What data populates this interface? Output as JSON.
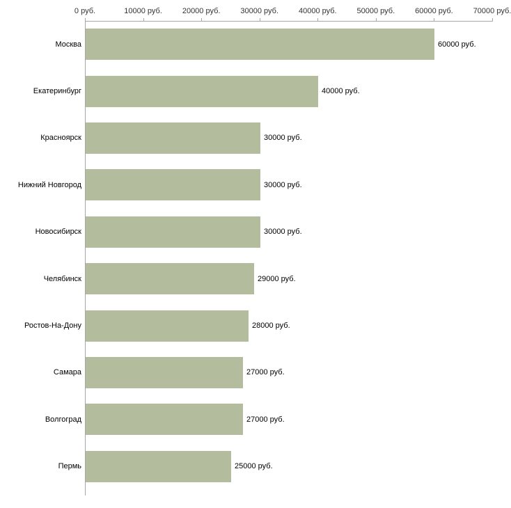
{
  "chart_data": {
    "type": "bar",
    "orientation": "horizontal",
    "title": "",
    "xlabel": "",
    "ylabel": "",
    "xlim": [
      0,
      70000
    ],
    "grid": false,
    "legend": null,
    "bar_color": "#b4bc9e",
    "axis_color": "#a6a6a6",
    "x_tick_values": [
      0,
      10000,
      20000,
      30000,
      40000,
      50000,
      60000,
      70000
    ],
    "x_tick_labels": [
      "0 руб.",
      "10000 руб.",
      "20000 руб.",
      "30000 руб.",
      "40000 руб.",
      "50000 руб.",
      "60000 руб.",
      "70000 руб."
    ],
    "categories": [
      "Москва",
      "Екатеринбург",
      "Красноярск",
      "Нижний Новгород",
      "Новосибирск",
      "Челябинск",
      "Ростов-На-Дону",
      "Самара",
      "Волгоград",
      "Пермь"
    ],
    "values": [
      60000,
      40000,
      30000,
      30000,
      30000,
      29000,
      28000,
      27000,
      27000,
      25000
    ],
    "value_labels": [
      "60000 руб.",
      "40000 руб.",
      "30000 руб.",
      "30000 руб.",
      "30000 руб.",
      "29000 руб.",
      "28000 руб.",
      "27000 руб.",
      "27000 руб.",
      "25000 руб."
    ]
  }
}
